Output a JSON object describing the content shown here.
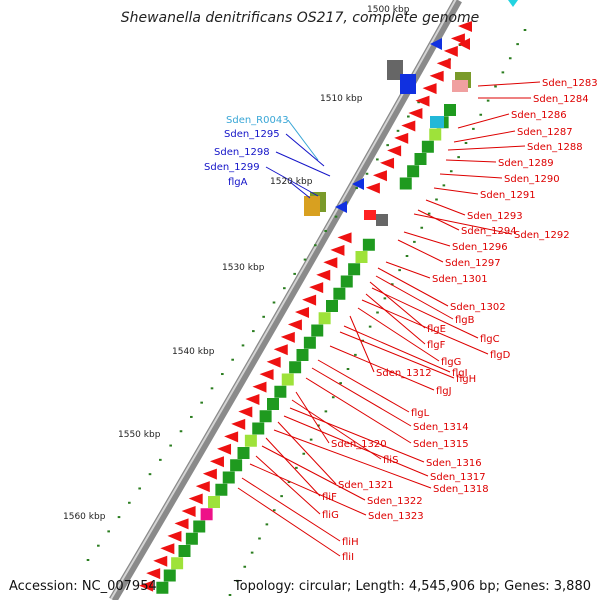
{
  "title": "Shewanella denitrificans OS217, complete genome",
  "footer": {
    "accession": "Accession: NC_007954",
    "summary": "Topology: circular; Length: 4,545,906 bp; Genes: 3,880"
  },
  "colors": {
    "backbone": "#8a8a8a",
    "tick": "#2a7d1f",
    "label_red": "#dd0000",
    "label_blue": "#1414c8",
    "label_cyan": "#39a6d6",
    "arrow_red": "#ee1111",
    "arrow_blue": "#1030e0",
    "green_dark": "#1f9a1f",
    "green_light": "#9ee23a",
    "magenta": "#ee1188"
  },
  "kbp_labels": [
    "1500 kbp",
    "1510 kbp",
    "1520 kbp",
    "1530 kbp",
    "1540 kbp",
    "1550 kbp",
    "1560 kbp"
  ],
  "right_labels": [
    "Sden_1283",
    "Sden_1284",
    "Sden_1286",
    "Sden_1287",
    "Sden_1288",
    "Sden_1289",
    "Sden_1290",
    "Sden_1291",
    "Sden_1293",
    "Sden_1294",
    "Sden_1292",
    "Sden_1296",
    "Sden_1297",
    "Sden_1301",
    "Sden_1302",
    "flgB",
    "flgE",
    "flgC",
    "flgF",
    "flgD",
    "flgG",
    "Sden_1312",
    "flgI",
    "flgH",
    "flgJ",
    "flgL",
    "Sden_1314",
    "Sden_1315",
    "Sden_1320",
    "fliS",
    "Sden_1316",
    "Sden_1317",
    "Sden_1321",
    "Sden_1318",
    "fliF",
    "Sden_1322",
    "fliG",
    "Sden_1323",
    "fliH",
    "fliI"
  ],
  "left_labels": [
    {
      "text": "Sden_R0043",
      "color": "cyan"
    },
    {
      "text": "Sden_1295",
      "color": "blue"
    },
    {
      "text": "Sden_1298",
      "color": "blue"
    },
    {
      "text": "Sden_1299",
      "color": "blue"
    },
    {
      "text": "flgA",
      "color": "blue"
    }
  ]
}
